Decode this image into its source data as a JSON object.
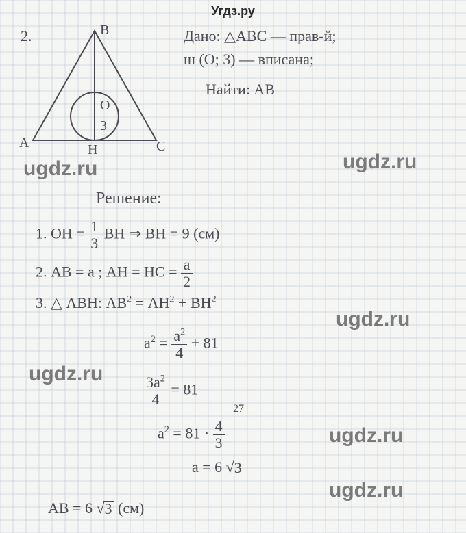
{
  "header": "Угдз.ру",
  "watermarks": {
    "w1": "ugdz.ru",
    "w2": "ugdz.ru",
    "w3": "ugdz.ru",
    "w4": "ugdz.ru",
    "w5": "ugdz.ru",
    "w6": "ugdz.ru"
  },
  "problem_no": "2.",
  "diagram": {
    "A": "А",
    "B": "В",
    "C": "С",
    "H": "Н",
    "O": "О",
    "r": "3"
  },
  "given": {
    "l1": "Дано: △АВС — прав-й;",
    "l2": "ш (О; 3) — вписана;",
    "l3": "Найти: АВ"
  },
  "solution_title": "Решение:",
  "steps": {
    "s1_a": "1. ОН = ",
    "s1_frac_n": "1",
    "s1_frac_d": "3",
    "s1_b": " ВН ⇒ ВН = 9 (см)",
    "s2_a": "2. АВ = a ;  АН = НС = ",
    "s2_frac_n": "a",
    "s2_frac_d": "2",
    "s3_a": "3. △ АВН:  АВ",
    "s3_sq": "2",
    "s3_b": " = АН",
    "s3_c": " + ВН",
    "eq1_a": "a",
    "eq1_b": " = ",
    "eq1_frac_n": "a",
    "eq1_fsup": "2",
    "eq1_frac_d": "4",
    "eq1_c": " + 81",
    "eq2_n": "3a",
    "eq2_nsup": "2",
    "eq2_d": "4",
    "eq2_b": " = 81",
    "eq3_a": "a",
    "eq3_b": " = 81 · ",
    "eq3_frac_n": "4",
    "eq3_frac_d": "3",
    "eq3_cancel": "27",
    "eq4_a": "a = 6",
    "eq4_rad": "3",
    "ans_a": "АВ = 6",
    "ans_rad": "3",
    "ans_b": " (см)"
  },
  "style": {
    "grid_color": "#b8c4d4",
    "ink_color": "#4a4a50",
    "bg": "#f5f5f3",
    "grid_step": 19,
    "hand_fontsize": 22,
    "header_fontsize": 18,
    "wm_fontsize": 30
  }
}
